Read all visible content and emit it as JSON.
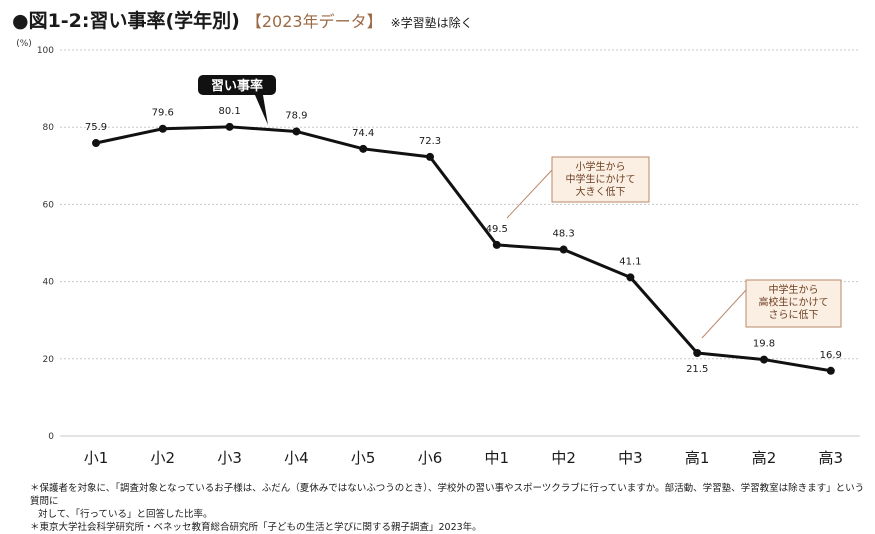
{
  "title": {
    "main": "●図1-2:習い事率(学年別)",
    "sub": "【2023年データ】",
    "note": "※学習塾は除く"
  },
  "chart_data": {
    "type": "line",
    "ylabel": "(%)",
    "ylim": [
      0,
      100
    ],
    "yticks": [
      0,
      20,
      40,
      60,
      80,
      100
    ],
    "grid": true,
    "categories": [
      "小1",
      "小2",
      "小3",
      "小4",
      "小5",
      "小6",
      "中1",
      "中2",
      "中3",
      "高1",
      "高2",
      "高3"
    ],
    "series": [
      {
        "name": "習い事率",
        "values": [
          75.9,
          79.6,
          80.1,
          78.9,
          74.4,
          72.3,
          49.5,
          48.3,
          41.1,
          21.5,
          19.8,
          16.9
        ]
      }
    ],
    "value_labels": [
      "75.9",
      "79.6",
      "80.1",
      "78.9",
      "74.4",
      "72.3",
      "49.5",
      "48.3",
      "41.1",
      "21.5",
      "19.8",
      "16.9"
    ],
    "annotations": [
      {
        "lines": [
          "小学生から",
          "中学生にかけて",
          "大きく低下"
        ],
        "target_index": 6
      },
      {
        "lines": [
          "中学生から",
          "高校生にかけて",
          "さらに低下"
        ],
        "target_index": 9
      }
    ],
    "colors": {
      "line": "#111111",
      "grid": "#c8c8c8",
      "callout_bg": "#fbeee2",
      "callout_border": "#b9886a",
      "callout_text": "#6b3f22"
    }
  },
  "footnotes": [
    "＊保護者を対象に、「調査対象となっているお子様は、ふだん（夏休みではないふつうのとき）、学校外の習い事やスポーツクラブに行っていますか。部活動、学習塾、学習教室は除きます」という質問に",
    "対して、「行っている」と回答した比率。",
    "＊東京大学社会科学研究所・ベネッセ教育総合研究所「子どもの生活と学びに関する親子調査」2023年。"
  ]
}
